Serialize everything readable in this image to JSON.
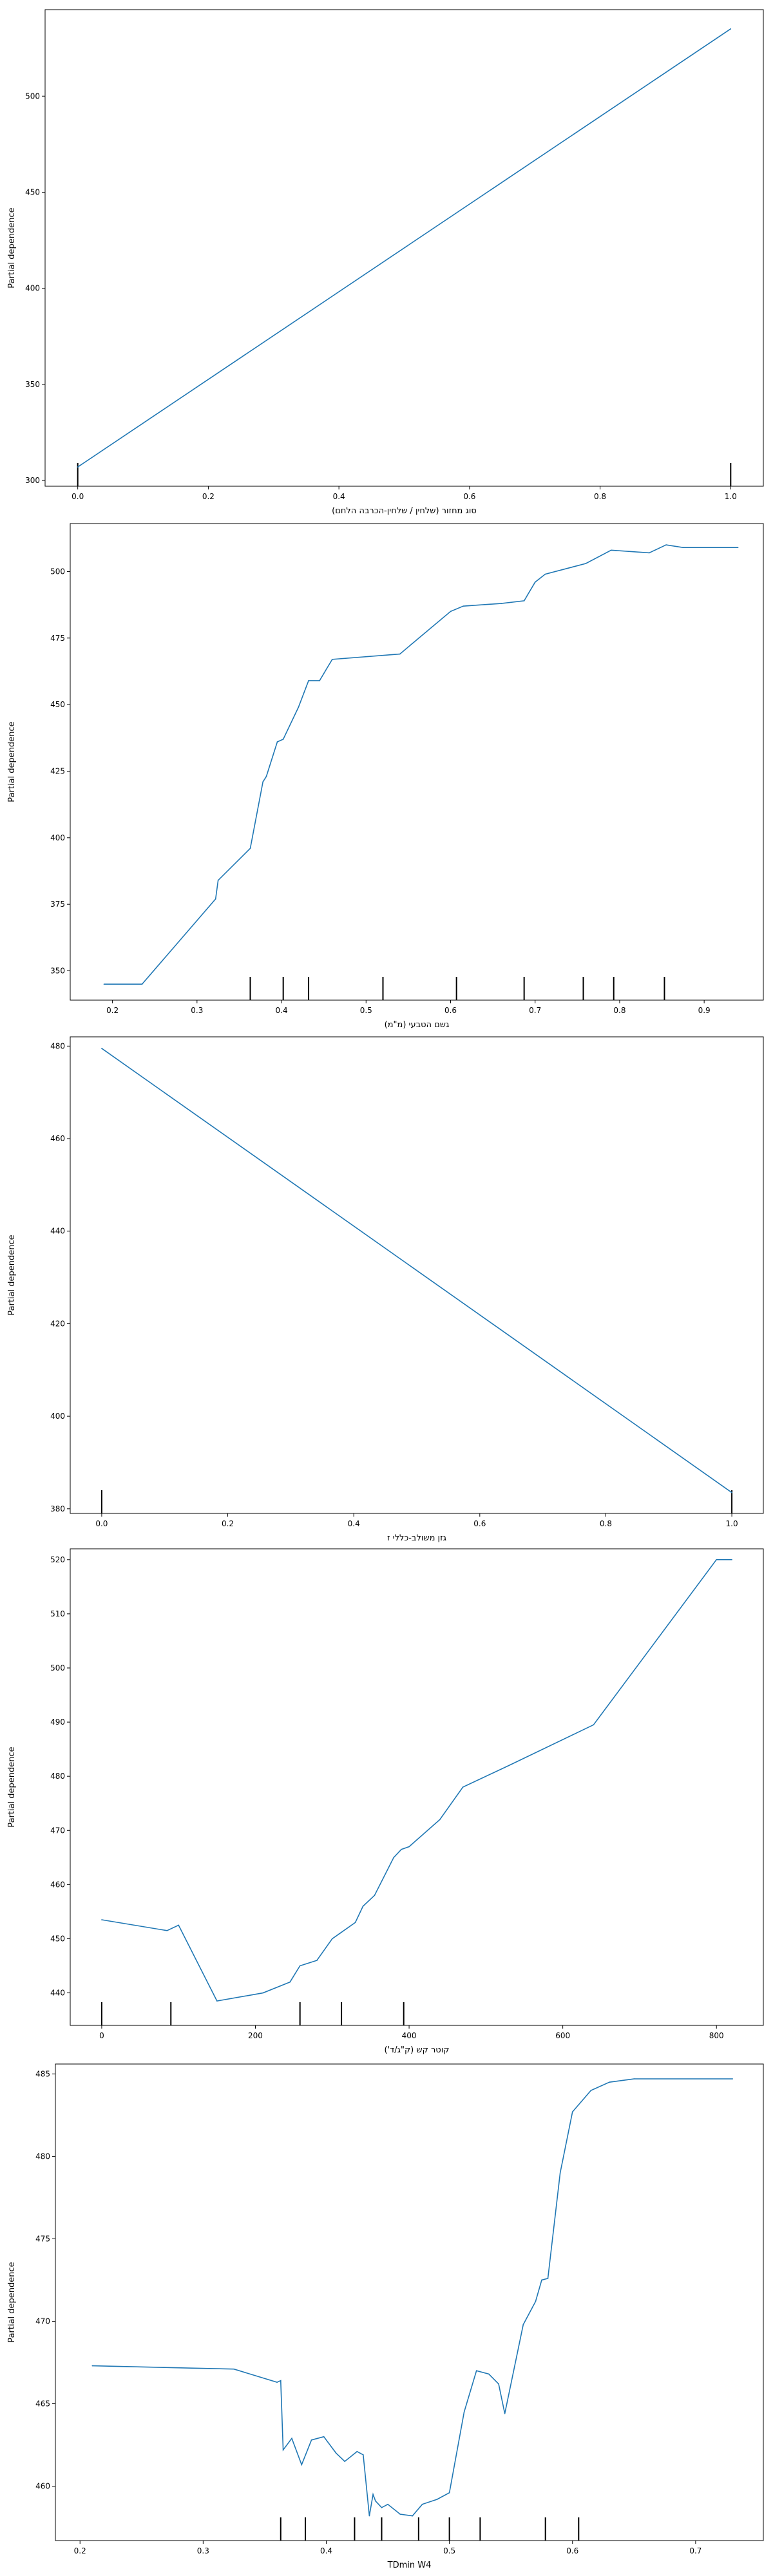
{
  "chart_data": [
    {
      "type": "line",
      "xlabel": "סוג מחזור (שלחין / שלחין-הכרבה הלחם)",
      "ylabel": "Partial dependence",
      "xlim": [
        -0.05,
        1.05
      ],
      "ylim": [
        297,
        545
      ],
      "xticks": [
        0.0,
        0.2,
        0.4,
        0.6,
        0.8,
        1.0
      ],
      "xtick_labels": [
        "0.0",
        "0.2",
        "0.4",
        "0.6",
        "0.8",
        "1.0"
      ],
      "yticks": [
        300,
        350,
        400,
        450,
        500
      ],
      "ytick_labels": [
        "300",
        "350",
        "400",
        "450",
        "500"
      ],
      "x": [
        0.0,
        1.0
      ],
      "y": [
        307,
        535
      ],
      "rug": [
        0.0,
        1.0
      ],
      "grid": false
    },
    {
      "type": "line",
      "xlabel": "גשם הטבעי (מ\"מ)",
      "ylabel": "Partial dependence",
      "xlim": [
        0.15,
        0.97
      ],
      "ylim": [
        339,
        518
      ],
      "xticks": [
        0.2,
        0.3,
        0.4,
        0.5,
        0.6,
        0.7,
        0.8,
        0.9
      ],
      "xtick_labels": [
        "0.2",
        "0.3",
        "0.4",
        "0.5",
        "0.6",
        "0.7",
        "0.8",
        "0.9"
      ],
      "yticks": [
        350,
        375,
        400,
        425,
        450,
        475,
        500
      ],
      "ytick_labels": [
        "350",
        "375",
        "400",
        "425",
        "450",
        "475",
        "500"
      ],
      "x": [
        0.19,
        0.235,
        0.322,
        0.325,
        0.363,
        0.378,
        0.382,
        0.395,
        0.402,
        0.42,
        0.432,
        0.445,
        0.46,
        0.54,
        0.6,
        0.615,
        0.66,
        0.687,
        0.7,
        0.712,
        0.76,
        0.79,
        0.835,
        0.855,
        0.875,
        0.94
      ],
      "y": [
        345,
        345,
        377,
        384,
        396,
        421,
        423,
        436,
        437,
        449,
        459,
        459,
        467,
        469,
        485,
        487,
        488,
        489,
        496,
        499,
        503,
        508,
        507,
        510,
        509,
        509
      ],
      "rug": [
        0.363,
        0.402,
        0.432,
        0.52,
        0.607,
        0.687,
        0.757,
        0.793,
        0.853
      ],
      "grid": false
    },
    {
      "type": "line",
      "xlabel": "גזן משולב-כללי ז",
      "ylabel": "Partial dependence",
      "xlim": [
        -0.05,
        1.05
      ],
      "ylim": [
        379,
        482
      ],
      "xticks": [
        0.0,
        0.2,
        0.4,
        0.6,
        0.8,
        1.0
      ],
      "xtick_labels": [
        "0.0",
        "0.2",
        "0.4",
        "0.6",
        "0.8",
        "1.0"
      ],
      "yticks": [
        380,
        400,
        420,
        440,
        460,
        480
      ],
      "ytick_labels": [
        "380",
        "400",
        "420",
        "440",
        "460",
        "480"
      ],
      "x": [
        0.0,
        1.0
      ],
      "y": [
        479.5,
        383.5
      ],
      "rug": [
        0.0,
        1.0
      ],
      "grid": false
    },
    {
      "type": "line",
      "xlabel": "קוטר קש (ק\"ג/ד')",
      "ylabel": "Partial dependence",
      "xlim": [
        -41,
        861
      ],
      "ylim": [
        434,
        522
      ],
      "xticks": [
        0,
        200,
        400,
        600,
        800
      ],
      "xtick_labels": [
        "0",
        "200",
        "400",
        "600",
        "800"
      ],
      "yticks": [
        440,
        450,
        460,
        470,
        480,
        490,
        500,
        510,
        520
      ],
      "ytick_labels": [
        "440",
        "450",
        "460",
        "470",
        "480",
        "490",
        "500",
        "510",
        "520"
      ],
      "x": [
        0,
        85,
        100,
        150,
        210,
        245,
        258,
        280,
        300,
        310,
        330,
        340,
        355,
        380,
        390,
        400,
        440,
        470,
        530,
        640,
        800,
        820
      ],
      "y": [
        453.5,
        451.5,
        452.5,
        438.5,
        440,
        442,
        445,
        446,
        450,
        451,
        453,
        456,
        458,
        465,
        466.5,
        467,
        472,
        478,
        482,
        489.5,
        520,
        520
      ],
      "rug": [
        0,
        90,
        258,
        312,
        393
      ],
      "grid": false
    },
    {
      "type": "line",
      "xlabel": "TDmin W4",
      "ylabel": "Partial dependence",
      "xlim": [
        0.18,
        0.755
      ],
      "ylim": [
        456.7,
        485.6
      ],
      "xticks": [
        0.2,
        0.3,
        0.4,
        0.5,
        0.6,
        0.7
      ],
      "xtick_labels": [
        "0.2",
        "0.3",
        "0.4",
        "0.5",
        "0.6",
        "0.7"
      ],
      "yticks": [
        460,
        465,
        470,
        475,
        480,
        485
      ],
      "ytick_labels": [
        "460",
        "465",
        "470",
        "475",
        "480",
        "485"
      ],
      "x": [
        0.21,
        0.325,
        0.36,
        0.363,
        0.365,
        0.372,
        0.38,
        0.388,
        0.398,
        0.408,
        0.415,
        0.425,
        0.43,
        0.435,
        0.438,
        0.44,
        0.445,
        0.45,
        0.46,
        0.47,
        0.478,
        0.49,
        0.5,
        0.512,
        0.522,
        0.532,
        0.54,
        0.545,
        0.56,
        0.57,
        0.575,
        0.58,
        0.59,
        0.6,
        0.615,
        0.63,
        0.65,
        0.73
      ],
      "y": [
        467.3,
        467.1,
        466.3,
        466.4,
        462.2,
        462.9,
        461.3,
        462.8,
        463.0,
        462.0,
        461.5,
        462.1,
        461.9,
        458.2,
        459.5,
        459.1,
        458.7,
        458.9,
        458.3,
        458.2,
        458.9,
        459.2,
        459.6,
        464.5,
        467.0,
        466.8,
        466.2,
        464.4,
        469.8,
        471.2,
        472.5,
        472.6,
        479.0,
        482.7,
        484.0,
        484.5,
        484.7,
        484.7
      ],
      "rug": [
        0.363,
        0.383,
        0.423,
        0.445,
        0.475,
        0.5,
        0.525,
        0.578,
        0.605
      ],
      "grid": false
    }
  ]
}
